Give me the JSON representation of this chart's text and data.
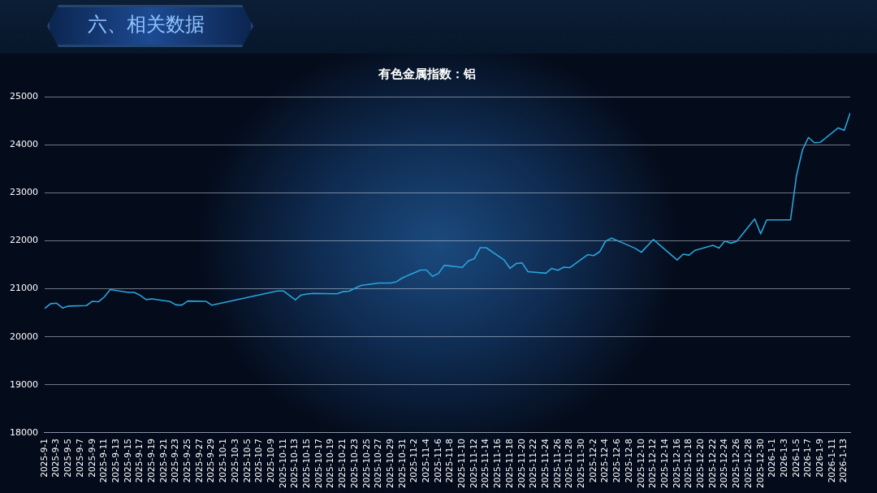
{
  "chart_data": {
    "type": "line",
    "title": "六、相关数据",
    "subtitle": "有色金属指数：铝",
    "x": [
      "2025-09-01",
      "2025-09-02",
      "2025-09-03",
      "2025-09-04",
      "2025-09-05",
      "2025-09-08",
      "2025-09-09",
      "2025-09-10",
      "2025-09-11",
      "2025-09-12",
      "2025-09-15",
      "2025-09-16",
      "2025-09-17",
      "2025-09-18",
      "2025-09-19",
      "2025-09-22",
      "2025-09-23",
      "2025-09-24",
      "2025-09-25",
      "2025-09-28",
      "2025-09-29",
      "2025-10-10",
      "2025-10-11",
      "2025-10-13",
      "2025-10-14",
      "2025-10-15",
      "2025-10-16",
      "2025-10-20",
      "2025-10-21",
      "2025-10-22",
      "2025-10-24",
      "2025-10-27",
      "2025-10-29",
      "2025-10-30",
      "2025-10-31",
      "2025-11-03",
      "2025-11-04",
      "2025-11-05",
      "2025-11-06",
      "2025-11-07",
      "2025-11-10",
      "2025-11-11",
      "2025-11-12",
      "2025-11-13",
      "2025-11-14",
      "2025-11-17",
      "2025-11-18",
      "2025-11-19",
      "2025-11-20",
      "2025-11-21",
      "2025-11-24",
      "2025-11-25",
      "2025-11-26",
      "2025-11-27",
      "2025-11-28",
      "2025-12-01",
      "2025-12-02",
      "2025-12-03",
      "2025-12-04",
      "2025-12-05",
      "2025-12-08",
      "2025-12-09",
      "2025-12-10",
      "2025-12-12",
      "2025-12-16",
      "2025-12-17",
      "2025-12-18",
      "2025-12-19",
      "2025-12-22",
      "2025-12-23",
      "2025-12-24",
      "2025-12-25",
      "2025-12-26",
      "2025-12-29",
      "2025-12-30",
      "2025-12-31",
      "2026-01-04",
      "2026-01-05",
      "2026-01-06",
      "2026-01-07",
      "2026-01-08",
      "2026-01-09",
      "2026-01-12",
      "2026-01-13",
      "2026-01-14"
    ],
    "series": [
      {
        "color": "#2aa4dc",
        "values": [
          20590,
          20690,
          20700,
          20600,
          20640,
          20650,
          20740,
          20730,
          20830,
          20985,
          20925,
          20925,
          20865,
          20775,
          20790,
          20735,
          20665,
          20660,
          20745,
          20740,
          20660,
          20955,
          20955,
          20770,
          20870,
          20890,
          20905,
          20895,
          20940,
          20950,
          21070,
          21120,
          21120,
          21150,
          21230,
          21390,
          21390,
          21260,
          21320,
          21490,
          21445,
          21580,
          21625,
          21855,
          21855,
          21600,
          21425,
          21525,
          21540,
          21355,
          21325,
          21425,
          21385,
          21450,
          21440,
          21710,
          21690,
          21770,
          21990,
          22055,
          21895,
          21840,
          21760,
          22025,
          21600,
          21720,
          21700,
          21800,
          21905,
          21845,
          21995,
          21950,
          21990,
          22455,
          22145,
          22435,
          22435,
          23360,
          23890,
          24150,
          24040,
          24050,
          24350,
          24300,
          24660
        ]
      }
    ],
    "xlim": [
      "2025-09-01",
      "2026-01-14"
    ],
    "xticks": [
      {
        "value": "2025-09-01",
        "label": "2025-9-1"
      },
      {
        "value": "2025-09-03",
        "label": "2025-9-3"
      },
      {
        "value": "2025-09-05",
        "label": "2025-9-5"
      },
      {
        "value": "2025-09-07",
        "label": "2025-9-7"
      },
      {
        "value": "2025-09-09",
        "label": "2025-9-9"
      },
      {
        "value": "2025-09-11",
        "label": "2025-9-11"
      },
      {
        "value": "2025-09-13",
        "label": "2025-9-13"
      },
      {
        "value": "2025-09-15",
        "label": "2025-9-15"
      },
      {
        "value": "2025-09-17",
        "label": "2025-9-17"
      },
      {
        "value": "2025-09-19",
        "label": "2025-9-19"
      },
      {
        "value": "2025-09-21",
        "label": "2025-9-21"
      },
      {
        "value": "2025-09-23",
        "label": "2025-9-23"
      },
      {
        "value": "2025-09-25",
        "label": "2025-9-25"
      },
      {
        "value": "2025-09-27",
        "label": "2025-9-27"
      },
      {
        "value": "2025-09-29",
        "label": "2025-9-29"
      },
      {
        "value": "2025-10-01",
        "label": "2025-10-1"
      },
      {
        "value": "2025-10-03",
        "label": "2025-10-3"
      },
      {
        "value": "2025-10-05",
        "label": "2025-10-5"
      },
      {
        "value": "2025-10-07",
        "label": "2025-10-7"
      },
      {
        "value": "2025-10-09",
        "label": "2025-10-9"
      },
      {
        "value": "2025-10-11",
        "label": "2025-10-11"
      },
      {
        "value": "2025-10-13",
        "label": "2025-10-13"
      },
      {
        "value": "2025-10-15",
        "label": "2025-10-15"
      },
      {
        "value": "2025-10-17",
        "label": "2025-10-17"
      },
      {
        "value": "2025-10-19",
        "label": "2025-10-19"
      },
      {
        "value": "2025-10-21",
        "label": "2025-10-21"
      },
      {
        "value": "2025-10-23",
        "label": "2025-10-23"
      },
      {
        "value": "2025-10-25",
        "label": "2025-10-25"
      },
      {
        "value": "2025-10-27",
        "label": "2025-10-27"
      },
      {
        "value": "2025-10-29",
        "label": "2025-10-29"
      },
      {
        "value": "2025-10-31",
        "label": "2025-10-31"
      },
      {
        "value": "2025-11-02",
        "label": "2025-11-2"
      },
      {
        "value": "2025-11-04",
        "label": "2025-11-4"
      },
      {
        "value": "2025-11-06",
        "label": "2025-11-6"
      },
      {
        "value": "2025-11-08",
        "label": "2025-11-8"
      },
      {
        "value": "2025-11-10",
        "label": "2025-11-10"
      },
      {
        "value": "2025-11-12",
        "label": "2025-11-12"
      },
      {
        "value": "2025-11-14",
        "label": "2025-11-14"
      },
      {
        "value": "2025-11-16",
        "label": "2025-11-16"
      },
      {
        "value": "2025-11-18",
        "label": "2025-11-18"
      },
      {
        "value": "2025-11-20",
        "label": "2025-11-20"
      },
      {
        "value": "2025-11-22",
        "label": "2025-11-22"
      },
      {
        "value": "2025-11-24",
        "label": "2025-11-24"
      },
      {
        "value": "2025-11-26",
        "label": "2025-11-26"
      },
      {
        "value": "2025-11-28",
        "label": "2025-11-28"
      },
      {
        "value": "2025-11-30",
        "label": "2025-11-30"
      },
      {
        "value": "2025-12-02",
        "label": "2025-12-2"
      },
      {
        "value": "2025-12-04",
        "label": "2025-12-4"
      },
      {
        "value": "2025-12-06",
        "label": "2025-12-6"
      },
      {
        "value": "2025-12-08",
        "label": "2025-12-8"
      },
      {
        "value": "2025-12-10",
        "label": "2025-12-10"
      },
      {
        "value": "2025-12-12",
        "label": "2025-12-12"
      },
      {
        "value": "2025-12-14",
        "label": "2025-12-14"
      },
      {
        "value": "2025-12-16",
        "label": "2025-12-16"
      },
      {
        "value": "2025-12-18",
        "label": "2025-12-18"
      },
      {
        "value": "2025-12-20",
        "label": "2025-12-20"
      },
      {
        "value": "2025-12-22",
        "label": "2025-12-22"
      },
      {
        "value": "2025-12-24",
        "label": "2025-12-24"
      },
      {
        "value": "2025-12-26",
        "label": "2025-12-26"
      },
      {
        "value": "2025-12-28",
        "label": "2025-12-28"
      },
      {
        "value": "2025-12-30",
        "label": "2025-12-30"
      },
      {
        "value": "2026-01-01",
        "label": "2026-1-1"
      },
      {
        "value": "2026-01-03",
        "label": "2026-1-3"
      },
      {
        "value": "2026-01-05",
        "label": "2026-1-5"
      },
      {
        "value": "2026-01-07",
        "label": "2026-1-7"
      },
      {
        "value": "2026-01-09",
        "label": "2026-1-9"
      },
      {
        "value": "2026-01-11",
        "label": "2026-1-11"
      },
      {
        "value": "2026-01-13",
        "label": "2026-1-13"
      }
    ],
    "ylim": [
      18000,
      25000
    ],
    "yticks": [
      18000,
      19000,
      20000,
      21000,
      22000,
      23000,
      24000,
      25000
    ],
    "grid": "y",
    "legend": false,
    "marker": "none",
    "line_style": "solid"
  }
}
